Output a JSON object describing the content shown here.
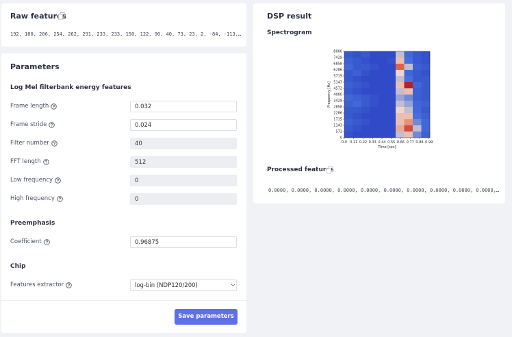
{
  "raw_features": {
    "title": "Raw features",
    "values": "192, 180, 206, 254, 262, 291, 233, 233, 150, 122, 90, 40, 73, 23, 2, -84, -113,…"
  },
  "parameters": {
    "title": "Parameters",
    "sections": [
      {
        "title": "Log Mel filterbank energy features",
        "fields": [
          {
            "label": "Frame length",
            "value": "0.032",
            "editable": true
          },
          {
            "label": "Frame stride",
            "value": "0.024",
            "editable": true
          },
          {
            "label": "Filter number",
            "value": "40",
            "editable": false
          },
          {
            "label": "FFT length",
            "value": "512",
            "editable": false
          },
          {
            "label": "Low frequency",
            "value": "0",
            "editable": false
          },
          {
            "label": "High frequency",
            "value": "0",
            "editable": false
          }
        ]
      },
      {
        "title": "Preemphasis",
        "fields": [
          {
            "label": "Coefficient",
            "value": "0.96875",
            "editable": true
          }
        ]
      },
      {
        "title": "Chip",
        "fields": [
          {
            "label": "Features extractor",
            "value": "log-bin (NDP120/200)",
            "editable": true,
            "select": true
          }
        ]
      }
    ],
    "button": "Save parameters"
  },
  "dsp_result": {
    "title": "DSP result",
    "spectrogram": {
      "title": "Spectrogram",
      "xlabel": "Time [sec]",
      "ylabel": "Frequency [Hz]",
      "xticks": [
        "0.0",
        "0.11",
        "0.22",
        "0.33",
        "0.44",
        "0.55",
        "0.66",
        "0.77",
        "0.88",
        "0.99"
      ],
      "yticks": [
        "8000",
        "7429",
        "6858",
        "6286",
        "5715",
        "5143",
        "4572",
        "4000",
        "3429",
        "2858",
        "2286",
        "1715",
        "1143",
        "572",
        "0"
      ],
      "intensity": [
        [
          0.2,
          0.15,
          0.2,
          0.1,
          0.1,
          0.1,
          0.5,
          0.3,
          0.2,
          0.15
        ],
        [
          0.25,
          0.2,
          0.15,
          0.1,
          0.1,
          0.15,
          0.6,
          0.35,
          0.2,
          0.15
        ],
        [
          0.3,
          0.2,
          0.2,
          0.15,
          0.1,
          0.1,
          0.8,
          0.5,
          0.25,
          0.2
        ],
        [
          0.2,
          0.25,
          0.15,
          0.1,
          0.1,
          0.1,
          0.55,
          0.3,
          0.2,
          0.15
        ],
        [
          0.2,
          0.15,
          0.1,
          0.1,
          0.1,
          0.1,
          0.5,
          0.35,
          0.2,
          0.2
        ],
        [
          0.25,
          0.2,
          0.15,
          0.1,
          0.1,
          0.1,
          0.6,
          0.95,
          0.3,
          0.2
        ],
        [
          0.2,
          0.15,
          0.1,
          0.1,
          0.1,
          0.1,
          0.5,
          0.6,
          0.25,
          0.2
        ],
        [
          0.3,
          0.25,
          0.2,
          0.15,
          0.1,
          0.1,
          0.45,
          0.4,
          0.25,
          0.2
        ],
        [
          0.25,
          0.3,
          0.2,
          0.15,
          0.1,
          0.1,
          0.5,
          0.45,
          0.3,
          0.25
        ],
        [
          0.2,
          0.2,
          0.15,
          0.1,
          0.1,
          0.1,
          0.55,
          0.5,
          0.3,
          0.2
        ],
        [
          0.2,
          0.15,
          0.1,
          0.1,
          0.1,
          0.1,
          0.6,
          0.6,
          0.35,
          0.25
        ],
        [
          0.25,
          0.2,
          0.15,
          0.1,
          0.1,
          0.1,
          0.6,
          0.7,
          0.4,
          0.3
        ],
        [
          0.2,
          0.15,
          0.1,
          0.1,
          0.1,
          0.1,
          0.65,
          0.85,
          0.5,
          0.3
        ],
        [
          0.15,
          0.1,
          0.1,
          0.1,
          0.1,
          0.1,
          0.5,
          0.6,
          0.4,
          0.25
        ]
      ]
    },
    "processed_features": {
      "title": "Processed features",
      "values": "0.0000, 0.0000, 0.0000, 0.0000, 0.0000, 0.0000, 0.0000, 0.0000, 0.0000, 0.0000,…"
    }
  }
}
